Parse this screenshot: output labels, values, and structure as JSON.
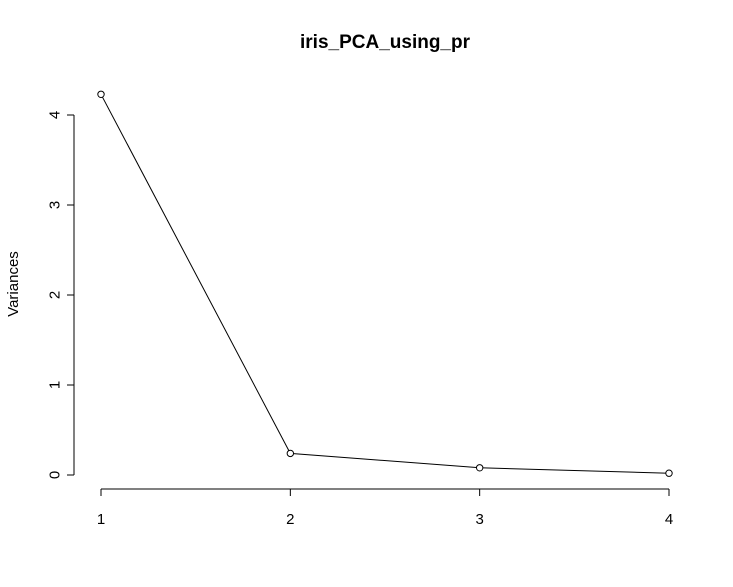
{
  "chart_data": {
    "type": "line",
    "title": "iris_PCA_using_pr",
    "xlabel": "",
    "ylabel": "Variances",
    "x": [
      1,
      2,
      3,
      4
    ],
    "x_ticks": [
      "1",
      "2",
      "3",
      "4"
    ],
    "series": [
      {
        "values": [
          4.23,
          0.24,
          0.08,
          0.02
        ]
      }
    ],
    "ylim": [
      0,
      4
    ],
    "y_ticks": [
      "0",
      "1",
      "2",
      "3",
      "4"
    ],
    "grid": false,
    "legend": "none",
    "colors": {
      "line": "#000000",
      "point_fill": "#ffffff",
      "background": "#ffffff"
    }
  }
}
